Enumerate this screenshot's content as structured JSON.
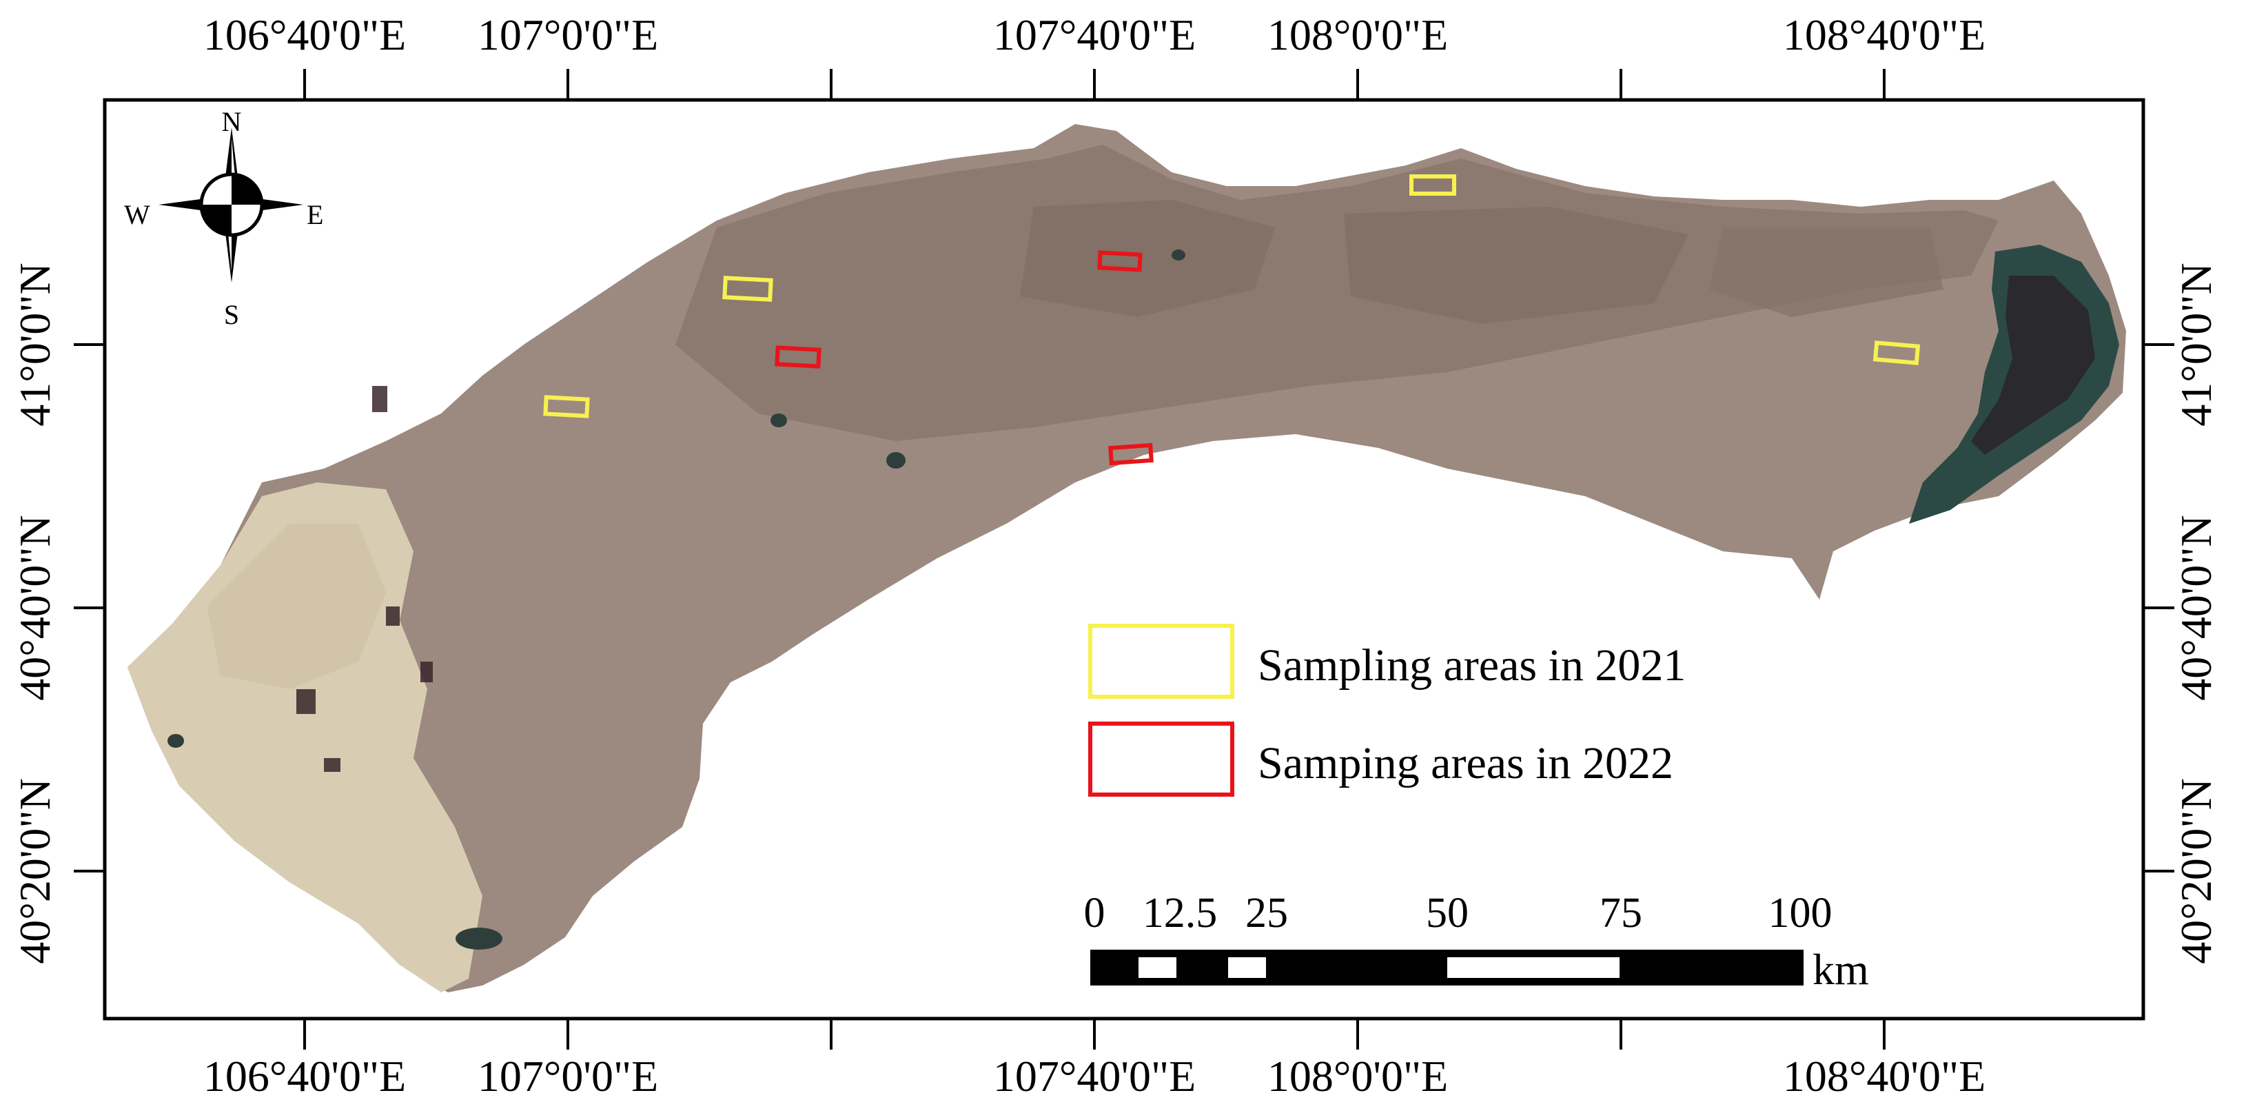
{
  "map": {
    "top_longitude_labels": [
      "106°40'0\"E",
      "107°0'0\"E",
      "107°40'0\"E",
      "108°0'0\"E",
      "108°40'0\"E"
    ],
    "bottom_longitude_labels": [
      "106°40'0\"E",
      "107°0'0\"E",
      "107°40'0\"E",
      "108°0'0\"E",
      "108°40'0\"E"
    ],
    "left_latitude_labels": [
      "41°0'0\"N",
      "40°40'0\"N",
      "40°20'0\"N"
    ],
    "right_latitude_labels": [
      "41°0'0\"N",
      "40°40'0\"N",
      "40°20'0\"N"
    ]
  },
  "compass": {
    "n": "N",
    "s": "S",
    "e": "E",
    "w": "W"
  },
  "legend": [
    {
      "label": "Sampling areas in 2021",
      "color": "#f7f150"
    },
    {
      "label": "Samping areas in 2022",
      "color": "#e8141b"
    }
  ],
  "scale_bar": {
    "ticks": [
      "0",
      "12.5",
      "25",
      "50",
      "75",
      "100"
    ],
    "unit": "km"
  },
  "colors": {
    "land": "#9c8a80",
    "farmland": "#8a766d",
    "desert": "#d8cdb2",
    "water": "#2c4a45",
    "frame": "#000000",
    "sampling_2021": "#f7f150",
    "sampling_2022": "#e8141b"
  }
}
